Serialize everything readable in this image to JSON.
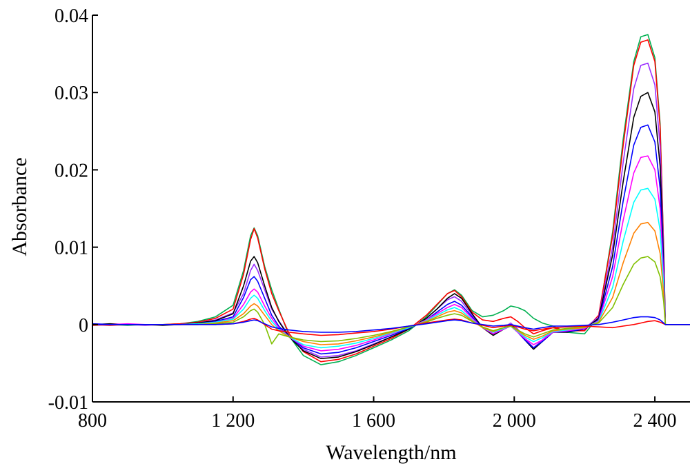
{
  "chart_data": {
    "type": "line",
    "title": "",
    "xlabel": "Wavelength/nm",
    "ylabel": "Absorbance",
    "xlim": [
      800,
      2500
    ],
    "ylim": [
      -0.01,
      0.04
    ],
    "xticks": [
      800,
      1200,
      1600,
      2000,
      2400
    ],
    "xtick_labels": [
      "800",
      "1 200",
      "1 600",
      "2 000",
      "2 400"
    ],
    "yticks": [
      -0.01,
      0,
      0.01,
      0.02,
      0.03,
      0.04
    ],
    "ytick_labels": [
      "-0.01",
      "0",
      "0.01",
      "0.02",
      "0.03",
      "0.04"
    ],
    "grid": false,
    "legend": "none",
    "note": "Many overlaid spectra; representative curves listed, each described by feature amplitudes.",
    "x": [
      800,
      850,
      900,
      950,
      1000,
      1050,
      1100,
      1150,
      1200,
      1230,
      1250,
      1260,
      1270,
      1290,
      1310,
      1330,
      1360,
      1400,
      1450,
      1500,
      1550,
      1600,
      1650,
      1700,
      1750,
      1780,
      1810,
      1830,
      1850,
      1880,
      1910,
      1940,
      1970,
      1990,
      2010,
      2030,
      2055,
      2080,
      2110,
      2150,
      2200,
      2240,
      2280,
      2310,
      2340,
      2360,
      2380,
      2400,
      2415,
      2425,
      2430,
      2440,
      2500
    ],
    "series": [
      {
        "color": "#00b050",
        "values": [
          0.0,
          0.0,
          -0.0001,
          0.0,
          0.0,
          0.0001,
          0.0004,
          0.001,
          0.0025,
          0.007,
          0.0115,
          0.0125,
          0.0115,
          0.0075,
          0.0045,
          0.002,
          -0.0015,
          -0.004,
          -0.0052,
          -0.0048,
          -0.004,
          -0.003,
          -0.002,
          -0.0008,
          0.001,
          0.0025,
          0.004,
          0.0045,
          0.0038,
          0.0018,
          0.001,
          0.0012,
          0.0018,
          0.0024,
          0.0022,
          0.0018,
          0.0008,
          0.0002,
          -0.0002,
          -0.001,
          -0.0012,
          0.001,
          0.012,
          0.024,
          0.034,
          0.0372,
          0.0375,
          0.0345,
          0.026,
          0.01,
          0.0,
          0.0,
          0.0
        ]
      },
      {
        "color": "#ff0000",
        "values": [
          0.0,
          -0.0001,
          0.0,
          0.0,
          0.0,
          0.0001,
          0.0003,
          0.0008,
          0.002,
          0.0065,
          0.011,
          0.0124,
          0.0112,
          0.0072,
          0.004,
          0.0018,
          -0.0012,
          -0.0035,
          -0.0048,
          -0.0045,
          -0.0038,
          -0.0028,
          -0.0018,
          -0.0006,
          0.0012,
          0.0026,
          0.004,
          0.0044,
          0.0036,
          0.0016,
          0.0006,
          0.0004,
          0.0008,
          0.001,
          0.0004,
          -0.0004,
          -0.0012,
          -0.0008,
          -0.0004,
          -0.0008,
          -0.0008,
          0.0012,
          0.0115,
          0.0232,
          0.0335,
          0.0365,
          0.0368,
          0.034,
          0.0255,
          0.0098,
          0.0,
          0.0,
          0.0
        ]
      },
      {
        "color": "#9b30ff",
        "values": [
          0.0001,
          0.0,
          0.0,
          -0.0001,
          0.0,
          0.0,
          0.0002,
          0.0006,
          0.0015,
          0.004,
          0.007,
          0.0078,
          0.007,
          0.0045,
          0.002,
          0.0005,
          -0.0015,
          -0.0032,
          -0.0042,
          -0.004,
          -0.0034,
          -0.0025,
          -0.0016,
          -0.0006,
          0.0008,
          0.002,
          0.0032,
          0.0036,
          0.003,
          0.0012,
          -0.0004,
          -0.0012,
          -0.0004,
          0.0002,
          -0.0006,
          -0.0018,
          -0.003,
          -0.002,
          -0.0008,
          -0.0008,
          -0.0005,
          0.001,
          0.01,
          0.021,
          0.0305,
          0.0335,
          0.0338,
          0.031,
          0.023,
          0.009,
          0.0,
          0.0,
          0.0
        ]
      },
      {
        "color": "#000000",
        "values": [
          0.0,
          0.0001,
          0.0,
          0.0,
          -0.0001,
          0.0,
          0.0002,
          0.0005,
          0.0014,
          0.005,
          0.0082,
          0.0088,
          0.008,
          0.005,
          0.0022,
          0.0004,
          -0.0016,
          -0.0034,
          -0.0044,
          -0.0042,
          -0.0035,
          -0.0026,
          -0.0016,
          -0.0006,
          0.0008,
          0.002,
          0.0034,
          0.004,
          0.0034,
          0.0014,
          -0.0004,
          -0.0014,
          -0.0006,
          0.0,
          -0.0008,
          -0.002,
          -0.0032,
          -0.0022,
          -0.001,
          -0.001,
          -0.0006,
          0.0008,
          0.009,
          0.0185,
          0.0268,
          0.0295,
          0.03,
          0.0275,
          0.0205,
          0.008,
          0.0,
          0.0,
          0.0
        ]
      },
      {
        "color": "#0000ff",
        "values": [
          0.0001,
          0.0,
          0.0,
          0.0,
          0.0,
          0.0,
          0.0001,
          0.0004,
          0.001,
          0.0035,
          0.0058,
          0.0062,
          0.0056,
          0.0034,
          0.0012,
          -0.0002,
          -0.0016,
          -0.003,
          -0.0038,
          -0.0036,
          -0.003,
          -0.0022,
          -0.0014,
          -0.0005,
          0.0006,
          0.0016,
          0.0026,
          0.003,
          0.0025,
          0.001,
          -0.0004,
          -0.0012,
          -0.0006,
          -0.0002,
          -0.001,
          -0.002,
          -0.003,
          -0.0022,
          -0.001,
          -0.0009,
          -0.0006,
          0.0006,
          0.0075,
          0.016,
          0.0232,
          0.0255,
          0.0258,
          0.0236,
          0.0176,
          0.007,
          0.0,
          0.0,
          0.0
        ]
      },
      {
        "color": "#ff00ff",
        "values": [
          0.0,
          0.0,
          0.0001,
          0.0,
          0.0,
          0.0,
          0.0001,
          0.0003,
          0.0008,
          0.0026,
          0.0042,
          0.0046,
          0.0042,
          0.0024,
          0.0008,
          -0.0004,
          -0.0016,
          -0.0028,
          -0.0034,
          -0.0032,
          -0.0027,
          -0.002,
          -0.0012,
          -0.0004,
          0.0006,
          0.0014,
          0.0022,
          0.0026,
          0.0022,
          0.0008,
          -0.0004,
          -0.0012,
          -0.0006,
          -0.0002,
          -0.001,
          -0.0018,
          -0.0026,
          -0.002,
          -0.001,
          -0.0008,
          -0.0005,
          0.0005,
          0.0062,
          0.0135,
          0.0196,
          0.0216,
          0.0218,
          0.02,
          0.015,
          0.006,
          0.0,
          0.0,
          0.0
        ]
      },
      {
        "color": "#00ffff",
        "values": [
          0.0,
          0.0,
          0.0,
          0.0,
          0.0,
          0.0,
          0.0001,
          0.0003,
          0.0007,
          0.002,
          0.0034,
          0.0038,
          0.0034,
          0.0018,
          0.0004,
          -0.0006,
          -0.0016,
          -0.0026,
          -0.003,
          -0.0028,
          -0.0024,
          -0.0018,
          -0.0011,
          -0.0004,
          0.0005,
          0.0012,
          0.0019,
          0.0022,
          0.0018,
          0.0006,
          -0.0004,
          -0.001,
          -0.0005,
          -0.0002,
          -0.0009,
          -0.0016,
          -0.0022,
          -0.0017,
          -0.0009,
          -0.0007,
          -0.0004,
          0.0004,
          0.0048,
          0.0108,
          0.0158,
          0.0174,
          0.0176,
          0.0162,
          0.0122,
          0.005,
          0.0,
          0.0,
          0.0
        ]
      },
      {
        "color": "#ff8000",
        "values": [
          0.0,
          0.0,
          0.0,
          0.0,
          0.0,
          0.0,
          0.0,
          0.0002,
          0.0005,
          0.0014,
          0.0024,
          0.0027,
          0.0024,
          0.0012,
          0.0,
          -0.0008,
          -0.0016,
          -0.0022,
          -0.0026,
          -0.0025,
          -0.0021,
          -0.0016,
          -0.001,
          -0.0003,
          0.0004,
          0.001,
          0.0016,
          0.0018,
          0.0015,
          0.0005,
          -0.0004,
          -0.0009,
          -0.0004,
          -0.0002,
          -0.0008,
          -0.0014,
          -0.0019,
          -0.0015,
          -0.0008,
          -0.0006,
          -0.0004,
          0.0003,
          0.0035,
          0.008,
          0.0118,
          0.013,
          0.0132,
          0.0121,
          0.0092,
          0.004,
          0.0,
          0.0,
          0.0
        ]
      },
      {
        "color": "#80c000",
        "values": [
          0.0,
          0.0,
          0.0,
          0.0,
          0.0,
          0.0,
          0.0,
          0.0001,
          0.0003,
          0.001,
          0.0018,
          0.002,
          0.0016,
          0.0,
          -0.0025,
          -0.0012,
          -0.0016,
          -0.002,
          -0.0022,
          -0.0021,
          -0.0018,
          -0.0014,
          -0.0009,
          -0.0003,
          0.0003,
          0.0008,
          0.0012,
          0.0014,
          0.0012,
          0.0004,
          -0.0003,
          -0.0008,
          -0.0004,
          -0.0002,
          -0.0007,
          -0.0012,
          -0.0016,
          -0.0012,
          -0.0007,
          -0.0005,
          -0.0003,
          0.0002,
          0.0022,
          0.0052,
          0.0078,
          0.0086,
          0.0088,
          0.0081,
          0.0062,
          0.003,
          0.0,
          0.0,
          0.0
        ]
      },
      {
        "color": "#ff0000",
        "values": [
          -0.0001,
          0.0,
          0.0,
          0.0,
          0.0,
          0.0,
          0.0,
          0.0,
          0.0001,
          0.0004,
          0.0007,
          0.0008,
          0.0006,
          0.0,
          -0.0006,
          -0.0008,
          -0.001,
          -0.0012,
          -0.0014,
          -0.0013,
          -0.0011,
          -0.0009,
          -0.0006,
          -0.0002,
          0.0002,
          0.0004,
          0.0006,
          0.0007,
          0.0006,
          0.0002,
          -0.0001,
          -0.0004,
          -0.0002,
          -0.0001,
          -0.0003,
          -0.0006,
          -0.0008,
          -0.0006,
          -0.0004,
          -0.0003,
          -0.0002,
          -0.0003,
          -0.0004,
          -0.0002,
          0.0,
          0.0002,
          0.0004,
          0.0005,
          0.0003,
          0.0001,
          0.0,
          0.0,
          0.0
        ]
      },
      {
        "color": "#0000ff",
        "values": [
          0.0,
          0.0,
          0.0,
          0.0,
          0.0,
          0.0,
          0.0,
          0.0,
          0.0001,
          0.0003,
          0.0005,
          0.0006,
          0.0005,
          0.0001,
          -0.0003,
          -0.0005,
          -0.0007,
          -0.0009,
          -0.001,
          -0.001,
          -0.0009,
          -0.0007,
          -0.0005,
          -0.0002,
          0.0001,
          0.0003,
          0.0005,
          0.0006,
          0.0005,
          0.0002,
          0.0,
          -0.0002,
          -0.0001,
          0.0,
          -0.0002,
          -0.0004,
          -0.0006,
          -0.0004,
          -0.0002,
          -0.0002,
          -0.0001,
          0.0,
          0.0003,
          0.0006,
          0.0009,
          0.001,
          0.001,
          0.0009,
          0.0006,
          0.0002,
          0.0,
          0.0,
          0.0
        ]
      }
    ]
  }
}
